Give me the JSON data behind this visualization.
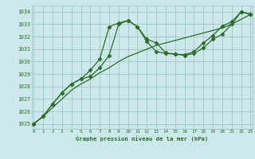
{
  "title": "Graphe pression niveau de la mer (hPa)",
  "bg_color": "#cce8e8",
  "grid_color": "#aacccc",
  "line_color": "#2d6a2d",
  "xmin": 0,
  "xmax": 23,
  "ymin": 1024.6,
  "ymax": 1034.5,
  "yticks": [
    1025,
    1026,
    1027,
    1028,
    1029,
    1030,
    1031,
    1032,
    1033,
    1034
  ],
  "xticks": [
    0,
    1,
    2,
    3,
    4,
    5,
    6,
    7,
    8,
    9,
    10,
    11,
    12,
    13,
    14,
    15,
    16,
    17,
    18,
    19,
    20,
    21,
    22,
    23
  ],
  "series1_y": [
    1025.0,
    1025.6,
    1026.3,
    1027.0,
    1027.7,
    1028.2,
    1028.6,
    1029.1,
    1029.5,
    1030.0,
    1030.4,
    1030.7,
    1031.0,
    1031.3,
    1031.5,
    1031.7,
    1031.9,
    1032.1,
    1032.3,
    1032.5,
    1032.7,
    1033.0,
    1033.4,
    1033.8
  ],
  "series2_y": [
    1025.0,
    1025.6,
    1026.6,
    1027.5,
    1028.2,
    1028.6,
    1029.3,
    1030.2,
    1032.8,
    1033.1,
    1033.3,
    1032.8,
    1031.8,
    1031.5,
    1030.7,
    1030.6,
    1030.5,
    1030.65,
    1031.1,
    1031.8,
    1032.2,
    1033.0,
    1034.0,
    1033.8
  ],
  "series3_y": [
    1025.0,
    1025.6,
    1026.6,
    1027.5,
    1028.2,
    1028.6,
    1028.8,
    1029.5,
    1030.5,
    1033.0,
    1033.3,
    1032.8,
    1031.6,
    1030.8,
    1030.65,
    1030.6,
    1030.55,
    1030.8,
    1031.5,
    1032.1,
    1032.85,
    1033.2,
    1034.0,
    1033.8
  ]
}
